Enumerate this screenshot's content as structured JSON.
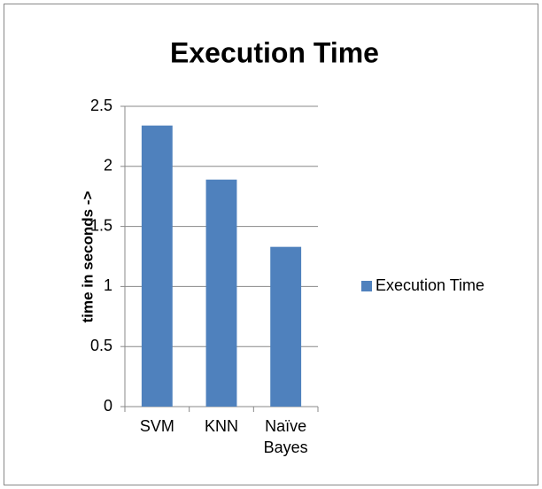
{
  "chart_data": {
    "type": "bar",
    "title": "Execution Time",
    "y_label": "time in seconds ->",
    "categories": [
      "SVM",
      "KNN",
      "Naïve Bayes"
    ],
    "series": [
      {
        "name": "Execution Time",
        "color": "#4f81bd",
        "values": [
          2.34,
          1.89,
          1.33
        ]
      }
    ],
    "ylim": [
      0,
      2.5
    ],
    "yticks": [
      0,
      0.5,
      1,
      1.5,
      2,
      2.5
    ],
    "grid": true,
    "legend": "right"
  }
}
